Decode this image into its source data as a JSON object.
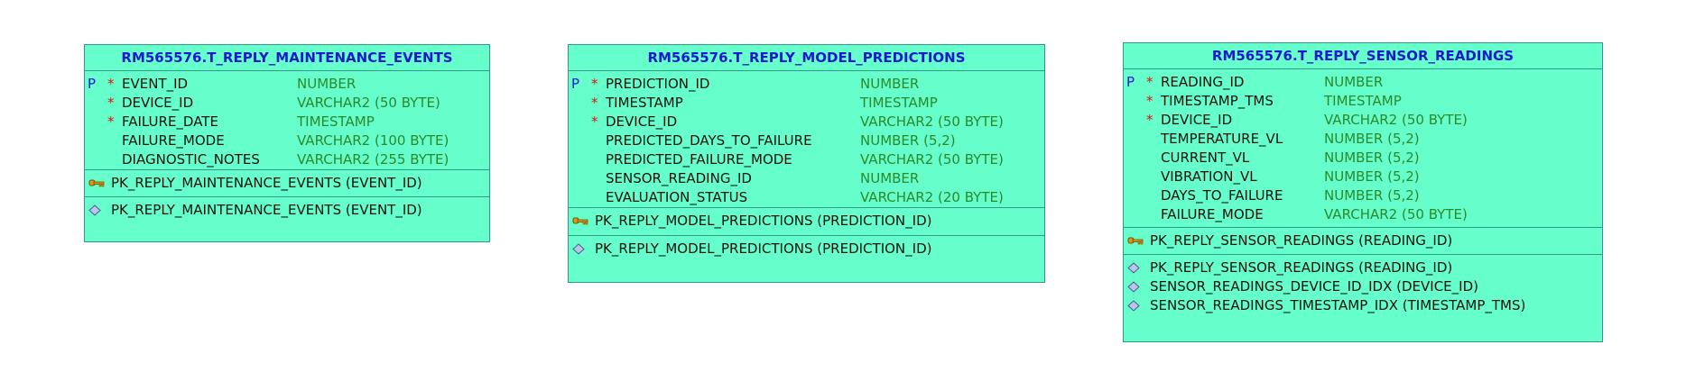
{
  "tables": [
    {
      "title": "RM565576.T_REPLY_MAINTENANCE_EVENTS",
      "columns": [
        {
          "pk": "P",
          "mandatory": "*",
          "name": "EVENT_ID",
          "type": "NUMBER"
        },
        {
          "pk": "",
          "mandatory": "*",
          "name": "DEVICE_ID",
          "type": "VARCHAR2 (50 BYTE)"
        },
        {
          "pk": "",
          "mandatory": "*",
          "name": "FAILURE_DATE",
          "type": "TIMESTAMP"
        },
        {
          "pk": "",
          "mandatory": "",
          "name": "FAILURE_MODE",
          "type": "VARCHAR2 (100 BYTE)"
        },
        {
          "pk": "",
          "mandatory": "",
          "name": "DIAGNOSTIC_NOTES",
          "type": "VARCHAR2 (255 BYTE)"
        }
      ],
      "keys": [
        "PK_REPLY_MAINTENANCE_EVENTS (EVENT_ID)"
      ],
      "indexes": [
        "PK_REPLY_MAINTENANCE_EVENTS (EVENT_ID)"
      ]
    },
    {
      "title": "RM565576.T_REPLY_MODEL_PREDICTIONS",
      "columns": [
        {
          "pk": "P",
          "mandatory": "*",
          "name": "PREDICTION_ID",
          "type": "NUMBER"
        },
        {
          "pk": "",
          "mandatory": "*",
          "name": "TIMESTAMP",
          "type": "TIMESTAMP"
        },
        {
          "pk": "",
          "mandatory": "*",
          "name": "DEVICE_ID",
          "type": "VARCHAR2 (50 BYTE)"
        },
        {
          "pk": "",
          "mandatory": "",
          "name": "PREDICTED_DAYS_TO_FAILURE",
          "type": "NUMBER (5,2)"
        },
        {
          "pk": "",
          "mandatory": "",
          "name": "PREDICTED_FAILURE_MODE",
          "type": "VARCHAR2 (50 BYTE)"
        },
        {
          "pk": "",
          "mandatory": "",
          "name": "SENSOR_READING_ID",
          "type": "NUMBER"
        },
        {
          "pk": "",
          "mandatory": "",
          "name": "EVALUATION_STATUS",
          "type": "VARCHAR2 (20 BYTE)"
        }
      ],
      "keys": [
        "PK_REPLY_MODEL_PREDICTIONS (PREDICTION_ID)"
      ],
      "indexes": [
        "PK_REPLY_MODEL_PREDICTIONS (PREDICTION_ID)"
      ]
    },
    {
      "title": "RM565576.T_REPLY_SENSOR_READINGS",
      "columns": [
        {
          "pk": "P",
          "mandatory": "*",
          "name": "READING_ID",
          "type": "NUMBER"
        },
        {
          "pk": "",
          "mandatory": "*",
          "name": "TIMESTAMP_TMS",
          "type": "TIMESTAMP"
        },
        {
          "pk": "",
          "mandatory": "*",
          "name": "DEVICE_ID",
          "type": "VARCHAR2 (50 BYTE)"
        },
        {
          "pk": "",
          "mandatory": "",
          "name": "TEMPERATURE_VL",
          "type": "NUMBER (5,2)"
        },
        {
          "pk": "",
          "mandatory": "",
          "name": "CURRENT_VL",
          "type": "NUMBER (5,2)"
        },
        {
          "pk": "",
          "mandatory": "",
          "name": "VIBRATION_VL",
          "type": "NUMBER (5,2)"
        },
        {
          "pk": "",
          "mandatory": "",
          "name": "DAYS_TO_FAILURE",
          "type": "NUMBER (5,2)"
        },
        {
          "pk": "",
          "mandatory": "",
          "name": "FAILURE_MODE",
          "type": "VARCHAR2 (50 BYTE)"
        }
      ],
      "keys": [
        "PK_REPLY_SENSOR_READINGS (READING_ID)"
      ],
      "indexes": [
        "PK_REPLY_SENSOR_READINGS (READING_ID)",
        "SENSOR_READINGS_DEVICE_ID_IDX (DEVICE_ID)",
        "SENSOR_READINGS_TIMESTAMP_IDX (TIMESTAMP_TMS)"
      ]
    }
  ],
  "icons": {
    "key": "key-icon",
    "index": "index-diamond-icon"
  },
  "colors": {
    "table_fill": "#66ffcc",
    "table_border": "#2f9a8a",
    "title_text": "#1a1acc",
    "pk_flag": "#1a1acc",
    "mandatory_flag": "#dd1111",
    "column_name": "#111111",
    "column_type": "#2a8a2a"
  }
}
